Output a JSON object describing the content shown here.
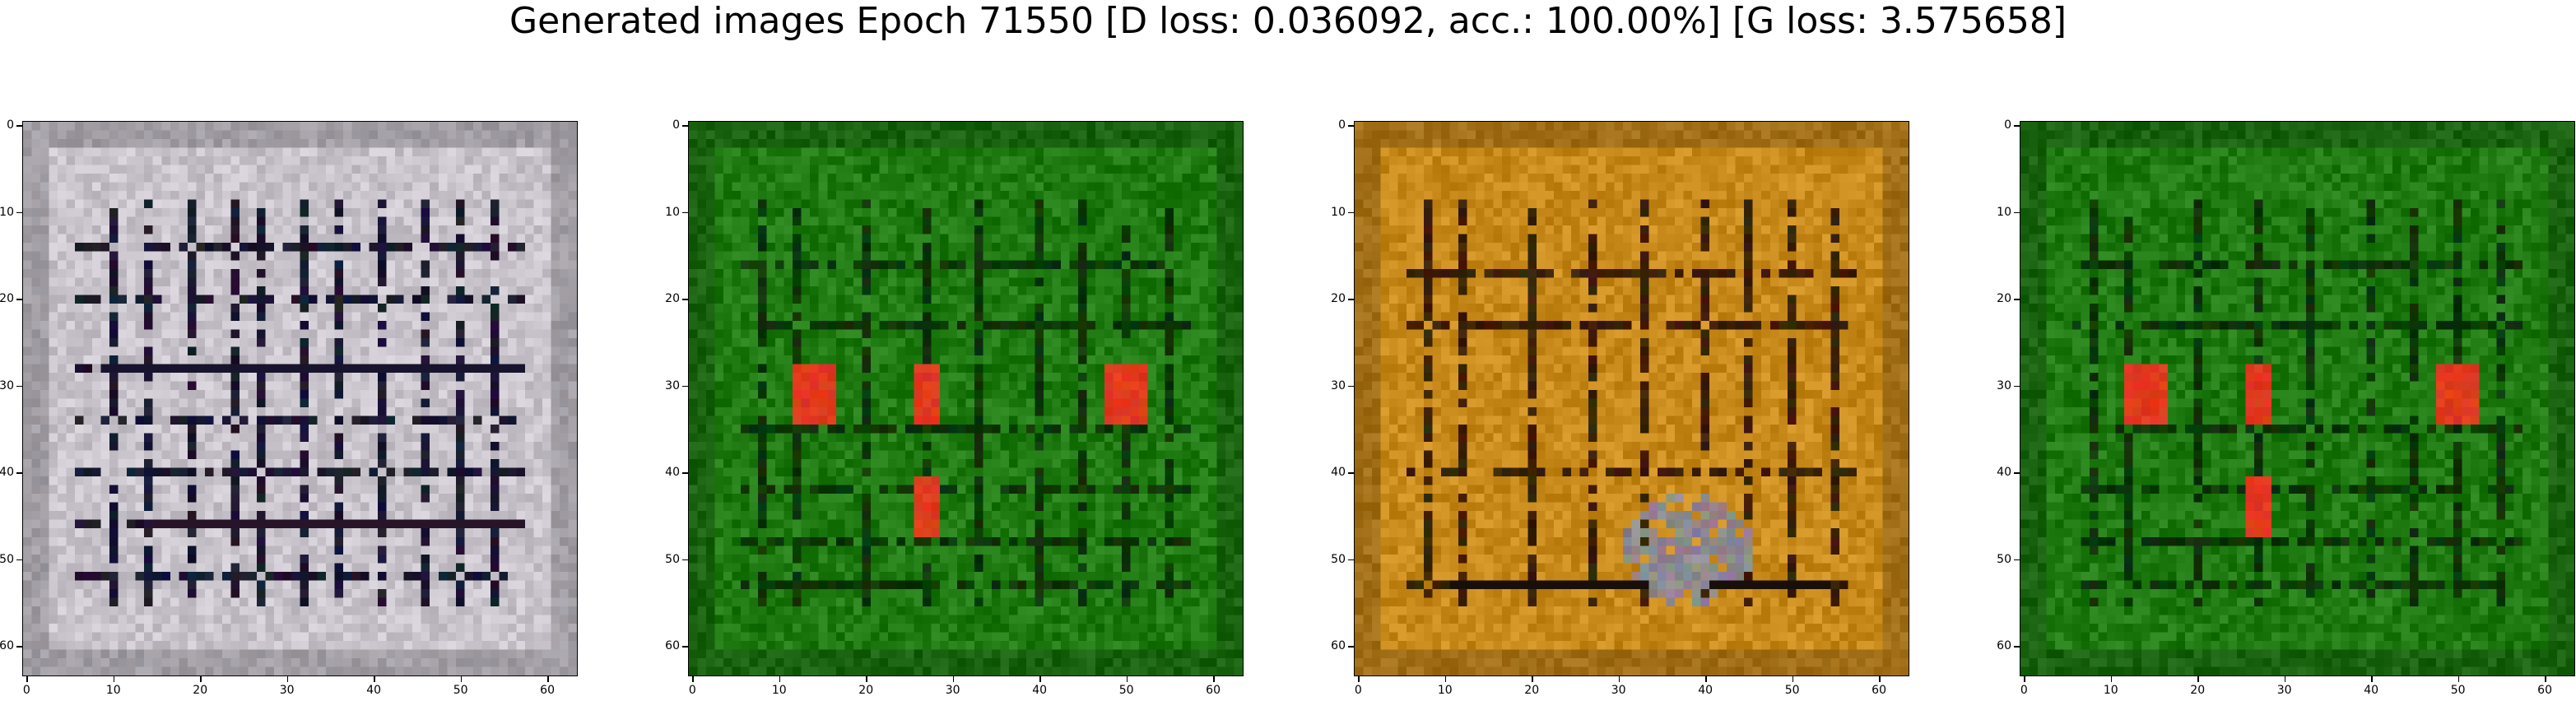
{
  "figure": {
    "title": "Generated images Epoch 71550 [D loss: 0.036092, acc.: 100.00%] [G loss: 3.575658]"
  },
  "axes": {
    "x_ticks": [
      "0",
      "10",
      "20",
      "30",
      "40",
      "50",
      "60"
    ],
    "y_ticks": [
      "0",
      "10",
      "20",
      "30",
      "40",
      "50",
      "60"
    ],
    "extent": [
      0,
      63
    ]
  },
  "images": [
    {
      "name": "sample-1",
      "palette": "grey-lattice",
      "base_color": "#c9c4cc",
      "line_color": "#1a1830"
    },
    {
      "name": "sample-2",
      "palette": "green-grid",
      "base_color": "#1f7a12",
      "line_color": "#0c3506",
      "accent_color": "#e03a1e"
    },
    {
      "name": "sample-3",
      "palette": "ochre-grid",
      "base_color": "#c98a1c",
      "line_color": "#3a2006",
      "accent_color": "#8e8890"
    },
    {
      "name": "sample-4",
      "palette": "green-grid",
      "base_color": "#1f7a12",
      "line_color": "#0c3506",
      "accent_color": "#e03a1e"
    }
  ]
}
